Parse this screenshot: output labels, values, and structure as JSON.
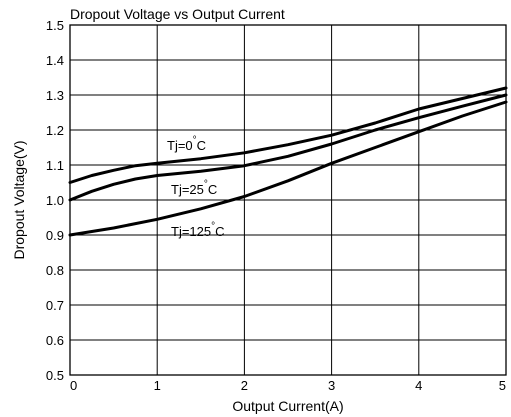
{
  "chart_data": {
    "type": "line",
    "title": "Dropout Voltage vs Output Current",
    "xlabel": "Output Current(A)",
    "ylabel": "Dropout Voltage(V)",
    "xlim": [
      0,
      5
    ],
    "ylim": [
      0.5,
      1.5
    ],
    "x_ticks": [
      "0",
      "1",
      "2",
      "3",
      "4",
      "5"
    ],
    "y_ticks": [
      "0.5",
      "0.6",
      "0.7",
      "0.8",
      "0.9",
      "1.0",
      "1.1",
      "1.2",
      "1.3",
      "1.4",
      "1.5"
    ],
    "grid": true,
    "series": [
      {
        "name_prefix": "Tj=0",
        "name_suffix": "C",
        "x": [
          0,
          0.25,
          0.5,
          0.75,
          1.0,
          1.5,
          2.0,
          2.5,
          3.0,
          3.5,
          4.0,
          4.5,
          5.0
        ],
        "y": [
          1.05,
          1.07,
          1.085,
          1.098,
          1.105,
          1.118,
          1.135,
          1.158,
          1.185,
          1.22,
          1.26,
          1.29,
          1.32
        ]
      },
      {
        "name_prefix": "Tj=25",
        "name_suffix": "C",
        "x": [
          0,
          0.25,
          0.5,
          0.75,
          1.0,
          1.5,
          2.0,
          2.5,
          3.0,
          3.5,
          4.0,
          4.5,
          5.0
        ],
        "y": [
          1.0,
          1.025,
          1.045,
          1.06,
          1.07,
          1.082,
          1.098,
          1.125,
          1.16,
          1.2,
          1.235,
          1.268,
          1.3
        ]
      },
      {
        "name_prefix": "Tj=125",
        "name_suffix": "C",
        "x": [
          0,
          0.5,
          1.0,
          1.5,
          2.0,
          2.5,
          3.0,
          3.5,
          4.0,
          4.5,
          5.0
        ],
        "y": [
          0.9,
          0.92,
          0.945,
          0.975,
          1.01,
          1.055,
          1.105,
          1.15,
          1.195,
          1.24,
          1.28
        ]
      }
    ],
    "degree_symbol": "°"
  }
}
